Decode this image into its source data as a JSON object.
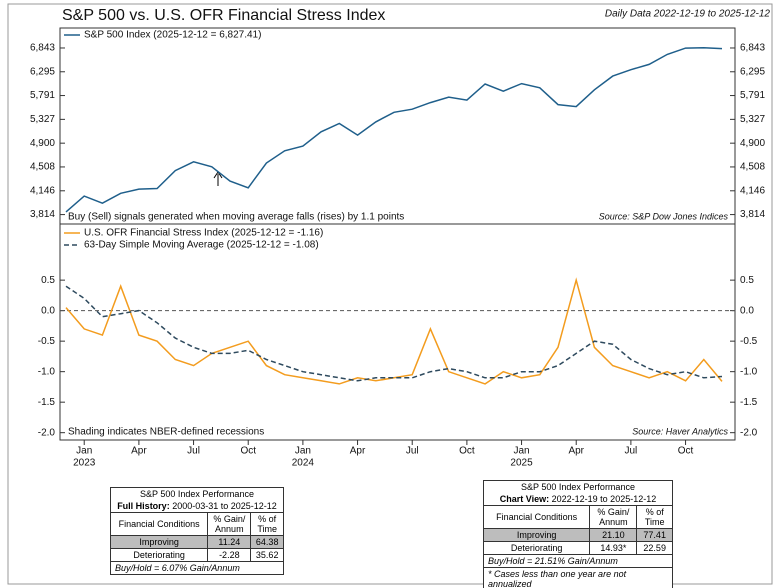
{
  "chart_data": [
    {
      "type": "line",
      "title": "S&P 500 vs. U.S. OFR Financial Stress Index",
      "subtitle": "Daily Data 2022-12-19 to 2025-12-12",
      "note": "Buy (Sell) signals generated when moving average falls (rises) by 1.1 points",
      "source": "Source: S&P Dow Jones Indices",
      "x": [
        "2022-12",
        "2023-01",
        "2023-02",
        "2023-03",
        "2023-04",
        "2023-05",
        "2023-06",
        "2023-07",
        "2023-08",
        "2023-09",
        "2023-10",
        "2023-11",
        "2023-12",
        "2024-01",
        "2024-02",
        "2024-03",
        "2024-04",
        "2024-05",
        "2024-06",
        "2024-07",
        "2024-08",
        "2024-09",
        "2024-10",
        "2024-11",
        "2024-12",
        "2025-01",
        "2025-02",
        "2025-03",
        "2025-04",
        "2025-05",
        "2025-06",
        "2025-07",
        "2025-08",
        "2025-09",
        "2025-10",
        "2025-11",
        "2025-12"
      ],
      "xlim": [
        "2022-12",
        "2025-12"
      ],
      "series": [
        {
          "name": "S&P 500 Index (2025-12-12 = 6,827.41)",
          "color": "#1f5f8b",
          "values": [
            3850,
            4070,
            3970,
            4110,
            4170,
            4180,
            4450,
            4590,
            4510,
            4290,
            4190,
            4570,
            4770,
            4850,
            5100,
            5250,
            5040,
            5280,
            5460,
            5520,
            5650,
            5760,
            5700,
            6030,
            5880,
            6040,
            5950,
            5610,
            5570,
            5910,
            6200,
            6340,
            6460,
            6690,
            6840,
            6850,
            6827.41
          ]
        }
      ],
      "log_scale": true,
      "ylim": [
        3690,
        7340
      ],
      "yticks": [
        {
          "value": 3814,
          "label": "3,814"
        },
        {
          "value": 4146,
          "label": "4,146"
        },
        {
          "value": 4508,
          "label": "4,508"
        },
        {
          "value": 4900,
          "label": "4,900"
        },
        {
          "value": 5327,
          "label": "5,327"
        },
        {
          "value": 5791,
          "label": "5,791"
        },
        {
          "value": 6295,
          "label": "6,295"
        },
        {
          "value": 6843,
          "label": "6,843"
        }
      ]
    },
    {
      "type": "line",
      "note": "Shading indicates NBER-defined recessions",
      "source": "Source: Haver Analytics",
      "x": [
        "2022-12",
        "2023-01",
        "2023-02",
        "2023-03",
        "2023-04",
        "2023-05",
        "2023-06",
        "2023-07",
        "2023-08",
        "2023-09",
        "2023-10",
        "2023-11",
        "2023-12",
        "2024-01",
        "2024-02",
        "2024-03",
        "2024-04",
        "2024-05",
        "2024-06",
        "2024-07",
        "2024-08",
        "2024-09",
        "2024-10",
        "2024-11",
        "2024-12",
        "2025-01",
        "2025-02",
        "2025-03",
        "2025-04",
        "2025-05",
        "2025-06",
        "2025-07",
        "2025-08",
        "2025-09",
        "2025-10",
        "2025-11",
        "2025-12"
      ],
      "xlim": [
        "2022-12",
        "2025-12"
      ],
      "xticks": [
        {
          "value": "2023-01",
          "label": "Jan"
        },
        {
          "value": "2023-04",
          "label": "Apr"
        },
        {
          "value": "2023-07",
          "label": "Jul"
        },
        {
          "value": "2023-10",
          "label": "Oct"
        },
        {
          "value": "2024-01",
          "label": "Jan"
        },
        {
          "value": "2024-04",
          "label": "Apr"
        },
        {
          "value": "2024-07",
          "label": "Jul"
        },
        {
          "value": "2024-10",
          "label": "Oct"
        },
        {
          "value": "2025-01",
          "label": "Jan"
        },
        {
          "value": "2025-04",
          "label": "Apr"
        },
        {
          "value": "2025-07",
          "label": "Jul"
        },
        {
          "value": "2025-10",
          "label": "Oct"
        }
      ],
      "xtick_years": [
        {
          "value": "2023-01",
          "label": "2023"
        },
        {
          "value": "2024-01",
          "label": "2024"
        },
        {
          "value": "2025-01",
          "label": "2025"
        }
      ],
      "series": [
        {
          "name": "U.S. OFR Financial Stress Index (2025-12-12 = -1.16)",
          "color": "#f39c1e",
          "style": "solid",
          "values": [
            0.05,
            -0.3,
            -0.4,
            0.4,
            -0.4,
            -0.5,
            -0.8,
            -0.9,
            -0.7,
            -0.6,
            -0.5,
            -0.9,
            -1.05,
            -1.1,
            -1.15,
            -1.2,
            -1.1,
            -1.15,
            -1.1,
            -1.05,
            -0.3,
            -1.0,
            -1.1,
            -1.2,
            -1.0,
            -1.1,
            -1.05,
            -0.6,
            0.5,
            -0.6,
            -0.9,
            -1.0,
            -1.1,
            -1.0,
            -1.15,
            -0.8,
            -1.16
          ]
        },
        {
          "name": "63-Day Simple Moving Average (2025-12-12 = -1.08)",
          "color": "#2e4a5e",
          "style": "dashed",
          "values": [
            0.4,
            0.2,
            -0.1,
            -0.05,
            0.0,
            -0.2,
            -0.45,
            -0.6,
            -0.7,
            -0.7,
            -0.65,
            -0.8,
            -0.9,
            -1.0,
            -1.05,
            -1.1,
            -1.15,
            -1.1,
            -1.1,
            -1.1,
            -1.0,
            -0.95,
            -1.0,
            -1.1,
            -1.1,
            -1.0,
            -1.0,
            -0.9,
            -0.7,
            -0.5,
            -0.55,
            -0.8,
            -0.95,
            -1.05,
            -1.0,
            -1.1,
            -1.08
          ]
        }
      ],
      "ylim": [
        -2.12,
        1.42
      ],
      "yticks": [
        {
          "value": -2,
          "label": "-2.0"
        },
        {
          "value": -1.5,
          "label": "-1.5"
        },
        {
          "value": -1,
          "label": "-1.0"
        },
        -0.5,
        {
          "value": 0,
          "label": "0.0"
        },
        0.5
      ]
    }
  ],
  "tables": [
    {
      "title": "S&P 500 Index Performance",
      "period_label": "Full History:",
      "period": "2000-03-31 to 2025-12-12",
      "header": [
        "Financial Conditions",
        "% Gain/\nAnnum",
        "% of\nTime"
      ],
      "rows": [
        [
          "Improving",
          "11.24",
          "64.38"
        ],
        [
          "Deteriorating",
          "-2.28",
          "35.62"
        ]
      ],
      "footer": [
        "Buy/Hold = 6.07% Gain/Annum"
      ]
    },
    {
      "title": "S&P 500 Index Performance",
      "period_label": "Chart View:",
      "period": "2022-12-19 to 2025-12-12",
      "header": [
        "Financial Conditions",
        "% Gain/\nAnnum",
        "% of\nTime"
      ],
      "rows": [
        [
          "Improving",
          "21.10",
          "77.41"
        ],
        [
          "Deteriorating",
          "14.93*",
          "22.59"
        ]
      ],
      "footer": [
        "Buy/Hold = 21.51% Gain/Annum",
        "* Cases less than one year are not annualized"
      ]
    }
  ]
}
